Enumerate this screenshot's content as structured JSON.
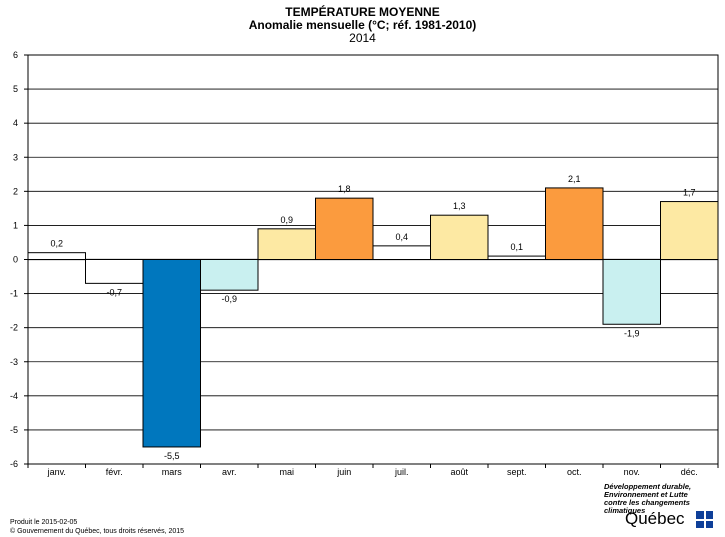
{
  "title": {
    "line1": "TEMPÉRATURE MOYENNE",
    "line2": "Anomalie mensuelle (°C; réf. 1981-2010)",
    "line3": "2014"
  },
  "chart_data": {
    "type": "bar",
    "categories": [
      "janv.",
      "févr.",
      "mars",
      "avr.",
      "mai",
      "juin",
      "juil.",
      "août",
      "sept.",
      "oct.",
      "nov.",
      "déc."
    ],
    "values": [
      0.2,
      -0.7,
      -5.5,
      -0.9,
      0.9,
      1.8,
      0.4,
      1.3,
      0.1,
      2.1,
      -1.9,
      1.7
    ],
    "value_labels": [
      "0,2",
      "-0,7",
      "-5,5",
      "-0,9",
      "0,9",
      "1,8",
      "0,4",
      "1,3",
      "0,1",
      "2,1",
      "-1,9",
      "1,7"
    ],
    "bar_colors": [
      "#ffffff",
      "#ffffff",
      "#0077be",
      "#c9f0f0",
      "#fde9a3",
      "#fb9b3e",
      "#ffffff",
      "#fde9a3",
      "#ffffff",
      "#fb9b3e",
      "#c9f0f0",
      "#fde9a3"
    ],
    "ylim": [
      -6,
      6
    ],
    "y_ticks": [
      6,
      5,
      4,
      3,
      2,
      1,
      0,
      -1,
      -2,
      -3,
      -4,
      -5,
      -6
    ],
    "grid": true,
    "plot_background": "#ffffff",
    "grid_color": "#000000"
  },
  "footer": {
    "produced": "Produit le 2015-02-05",
    "copyright": "© Gouvernement du Québec, tous droits réservés, 2015"
  },
  "logo": {
    "line1": "Développement durable,",
    "line2": "Environnement et Lutte",
    "line3": "contre les changements",
    "line4": "climatiques",
    "word": "Québec"
  }
}
